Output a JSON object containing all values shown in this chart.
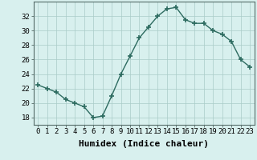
{
  "x": [
    0,
    1,
    2,
    3,
    4,
    5,
    6,
    7,
    8,
    9,
    10,
    11,
    12,
    13,
    14,
    15,
    16,
    17,
    18,
    19,
    20,
    21,
    22,
    23
  ],
  "y": [
    22.5,
    22.0,
    21.5,
    20.5,
    20.0,
    19.5,
    18.0,
    18.2,
    21.0,
    24.0,
    26.5,
    29.0,
    30.5,
    32.0,
    33.0,
    33.2,
    31.5,
    31.0,
    31.0,
    30.0,
    29.5,
    28.5,
    26.0,
    25.0
  ],
  "line_color": "#2d6b60",
  "marker": "+",
  "marker_size": 4,
  "marker_lw": 1.2,
  "bg_color": "#d8f0ee",
  "grid_color": "#aaccc8",
  "xlabel": "Humidex (Indice chaleur)",
  "ylim": [
    17,
    34
  ],
  "xlim": [
    -0.5,
    23.5
  ],
  "yticks": [
    18,
    20,
    22,
    24,
    26,
    28,
    30,
    32
  ],
  "xticks": [
    0,
    1,
    2,
    3,
    4,
    5,
    6,
    7,
    8,
    9,
    10,
    11,
    12,
    13,
    14,
    15,
    16,
    17,
    18,
    19,
    20,
    21,
    22,
    23
  ],
  "xtick_labels": [
    "0",
    "1",
    "2",
    "3",
    "4",
    "5",
    "6",
    "7",
    "8",
    "9",
    "10",
    "11",
    "12",
    "13",
    "14",
    "15",
    "16",
    "17",
    "18",
    "19",
    "20",
    "21",
    "22",
    "23"
  ],
  "tick_fontsize": 6.5,
  "xlabel_fontsize": 8,
  "line_width": 1.0
}
